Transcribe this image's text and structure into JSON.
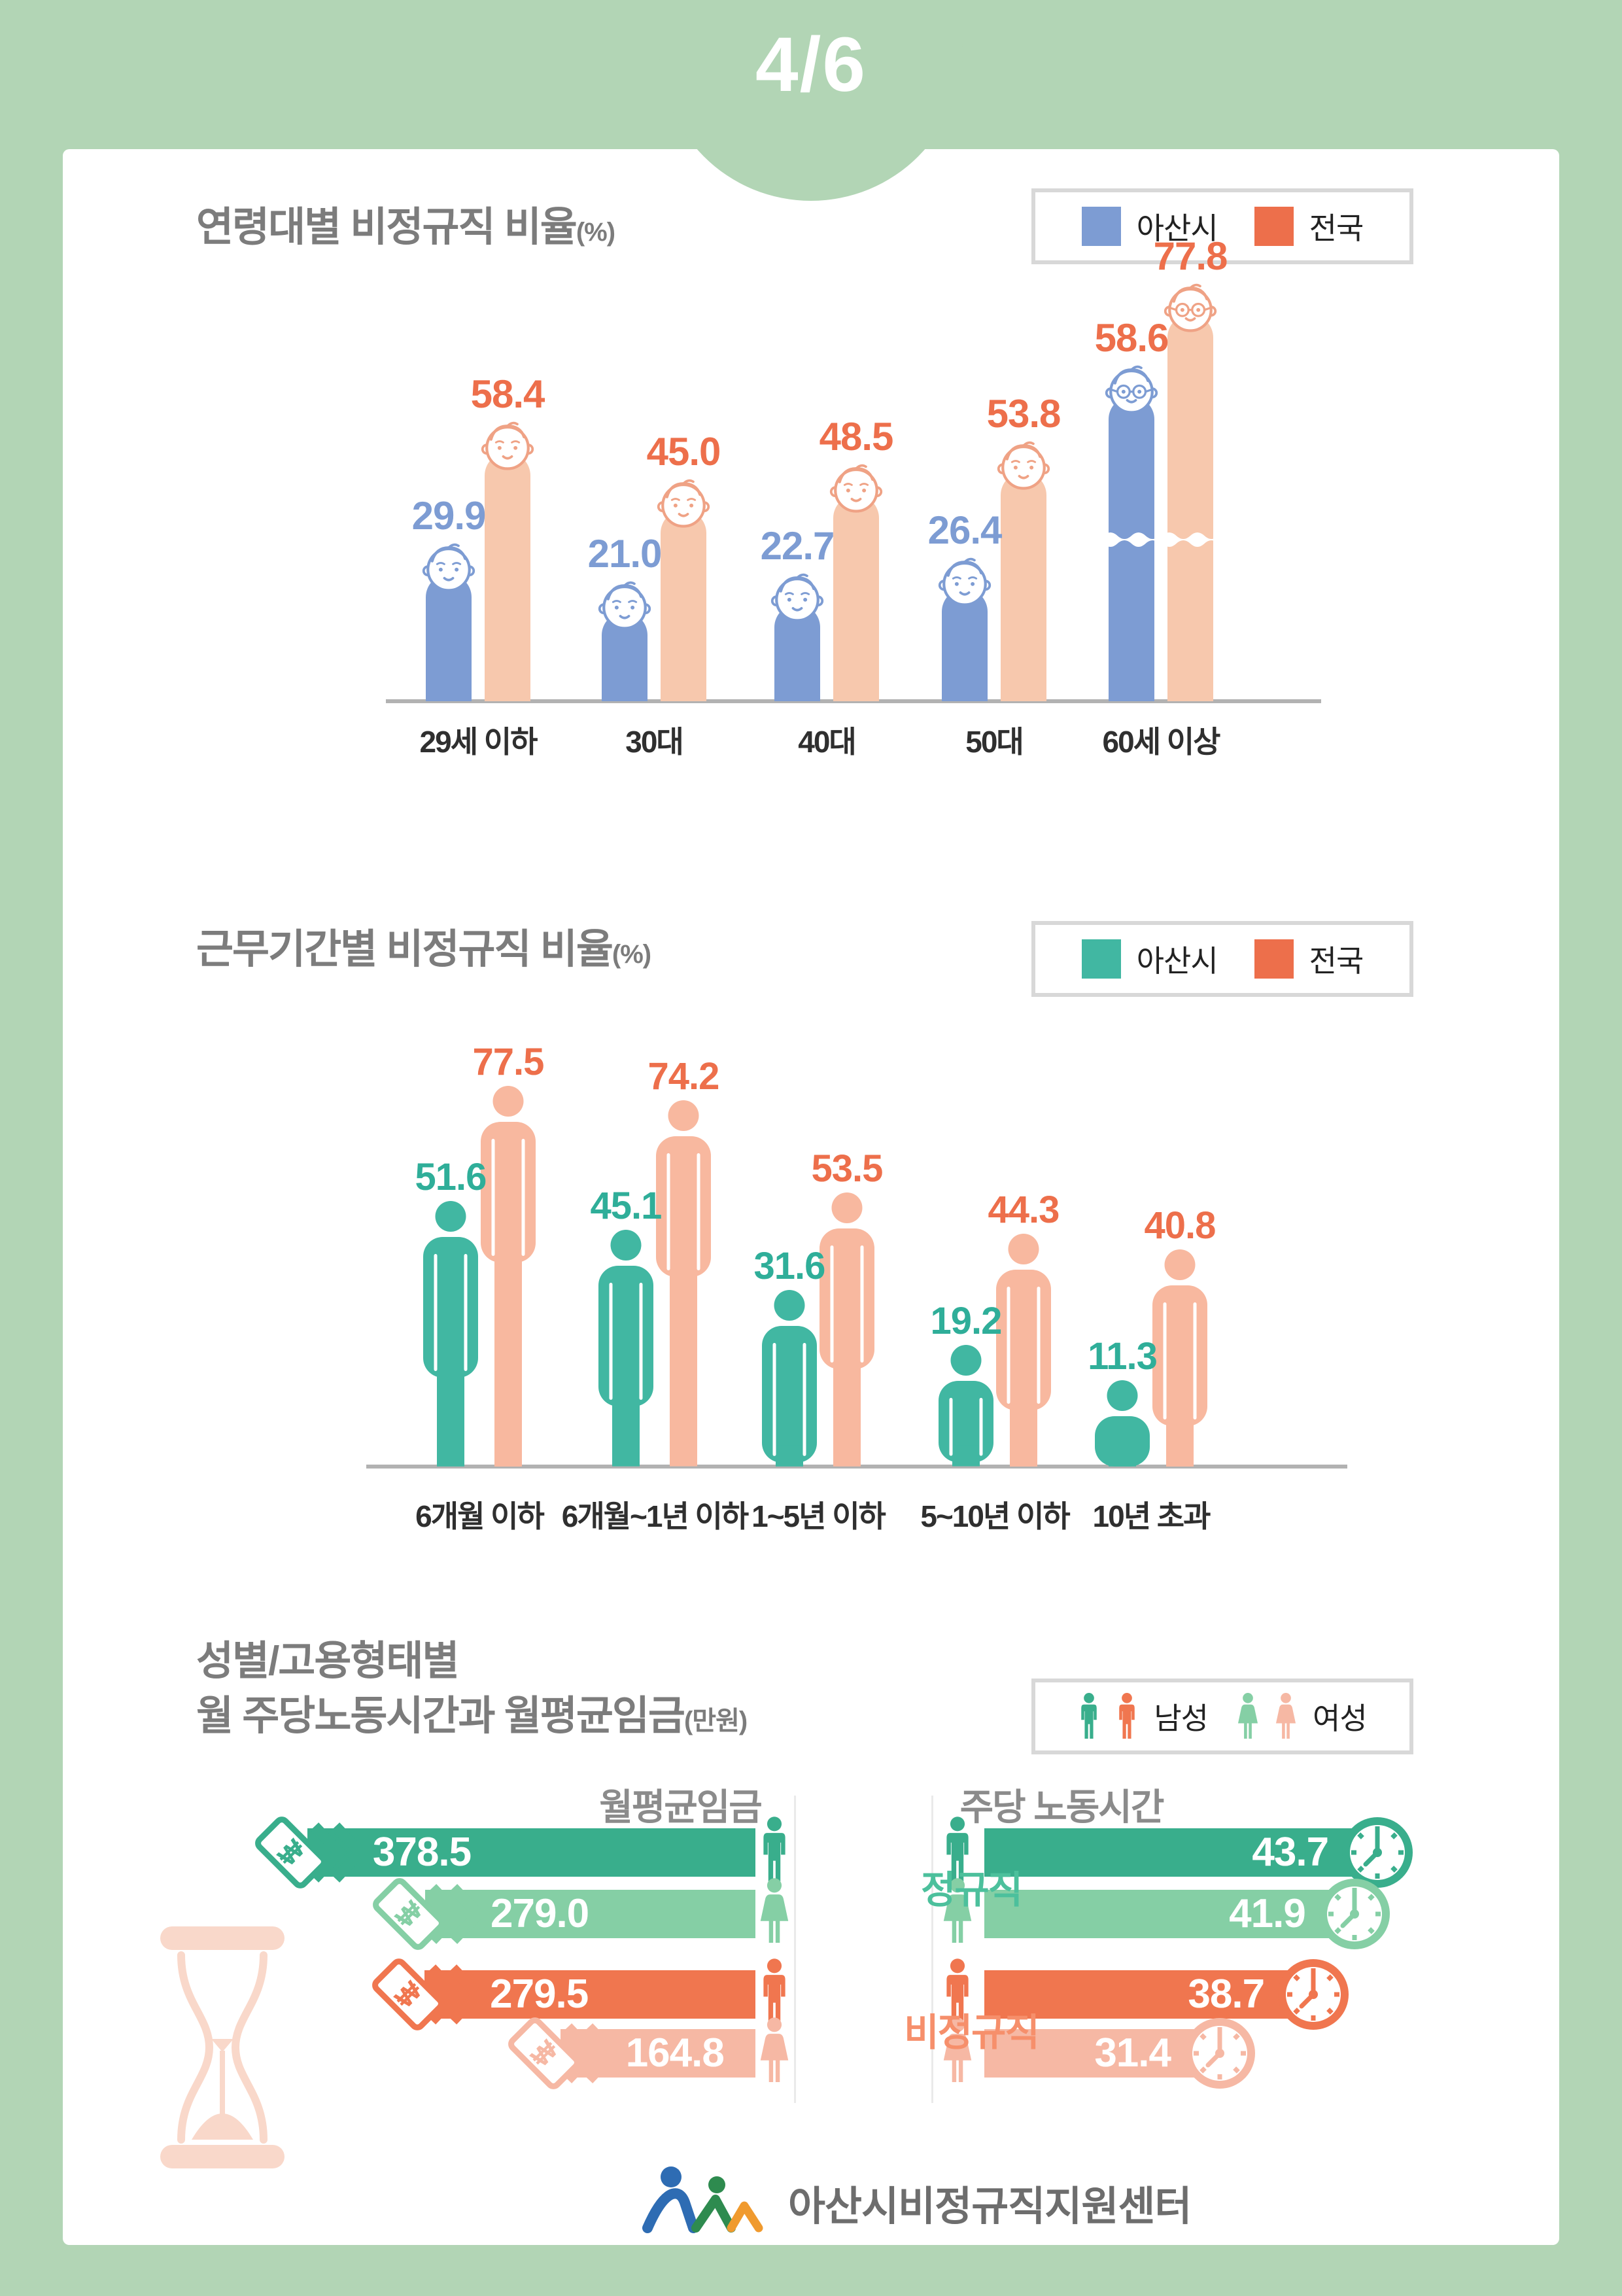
{
  "page": {
    "badge": "4/6",
    "bg_color": "#b2d5b5",
    "footer": {
      "brand": "아산시비정규직지원센터"
    }
  },
  "sections": [
    {
      "title": "연령대별  비정규직 비율",
      "unit": "(%)"
    },
    {
      "title": "근무기간별 비정규직 비율",
      "unit": "(%)"
    },
    {
      "title_line1": "성별/고용형태별",
      "title_line2": "월 주당노동시간과 월평균임금",
      "unit": "(만원)",
      "legend": [
        {
          "label": "남성"
        },
        {
          "label": "여성"
        }
      ],
      "col_headers": [
        "월평균임금",
        "주당 노동시간"
      ]
    }
  ],
  "chart_data": [
    {
      "type": "bar",
      "title": "연령대별 비정규직 비율(%)",
      "categories": [
        "29세 이하",
        "30대",
        "40대",
        "50대",
        "60세 이상"
      ],
      "series": [
        {
          "name": "아산시",
          "color": "#7d9cd3",
          "legend_color": "#7d9cd3",
          "label_color": "#7d9cd3",
          "values": [
            29.9,
            21.0,
            22.7,
            26.4,
            58.6
          ]
        },
        {
          "name": "전국",
          "color": "#f7c8ad",
          "legend_color": "#ed6f4b",
          "label_color": "#ed6f4b",
          "face_stroke": "#efa285",
          "values": [
            58.4,
            45.0,
            48.5,
            53.8,
            77.8
          ]
        }
      ],
      "broken_axis_category": "60세 이상",
      "broken_axis_label_color": "#ed6f4b",
      "legend_position": "top-right",
      "ylabel": "비정규직 비율(%)"
    },
    {
      "type": "bar",
      "style": "person-pictogram",
      "title": "근무기간별 비정규직 비율(%)",
      "categories": [
        "6개월 이하",
        "6개월~1년 이하",
        "1~5년 이하",
        "5~10년 이하",
        "10년 초과"
      ],
      "series": [
        {
          "name": "아산시",
          "color": "#41b7a2",
          "legend_color": "#41b7a2",
          "label_color": "#2fae99",
          "values": [
            51.6,
            45.1,
            31.6,
            19.2,
            11.3
          ]
        },
        {
          "name": "전국",
          "color": "#f8b89f",
          "legend_color": "#ed6f4b",
          "label_color": "#ed6f4b",
          "values": [
            77.5,
            74.2,
            53.5,
            44.3,
            40.8
          ]
        }
      ],
      "legend_position": "top-right",
      "ylabel": "비정규직 비율(%)"
    },
    {
      "type": "bar",
      "orientation": "horizontal",
      "title": "성별/고용형태별 월 주당노동시간과 월평균임금(만원)",
      "metrics": [
        "월평균임금",
        "주당 노동시간"
      ],
      "groups": [
        {
          "name": "정규직",
          "name_color": "#4cc09c",
          "rows": [
            {
              "gender": "남성",
              "wage": 378.5,
              "hours": 43.7,
              "color": "#39ae8c"
            },
            {
              "gender": "여성",
              "wage": 279.0,
              "hours": 41.9,
              "color": "#85cfa5"
            }
          ]
        },
        {
          "name": "비정규직",
          "name_color": "#f68f6b",
          "rows": [
            {
              "gender": "남성",
              "wage": 279.5,
              "hours": 38.7,
              "color": "#f0764f"
            },
            {
              "gender": "여성",
              "wage": 164.8,
              "hours": 31.4,
              "color": "#f6b8a4"
            }
          ]
        }
      ]
    }
  ]
}
